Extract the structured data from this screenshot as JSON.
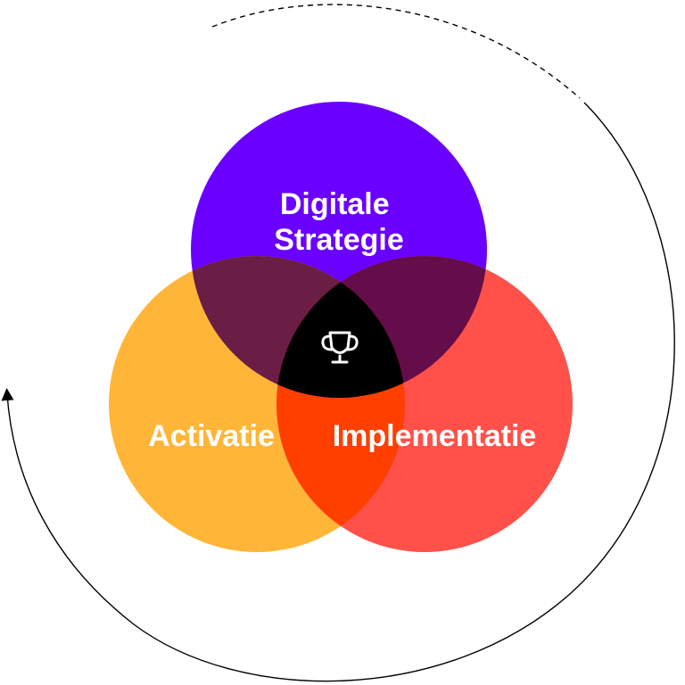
{
  "diagram": {
    "circles": [
      {
        "id": "strategy",
        "lines": [
          "Digitale",
          "Strategie"
        ],
        "color": "#6a00ff"
      },
      {
        "id": "activation",
        "lines": [
          "Activatie"
        ],
        "color": "#ffb638"
      },
      {
        "id": "implementation",
        "lines": [
          "Implementatie"
        ],
        "color": "#ff514a"
      }
    ],
    "overlaps": {
      "strategy_activation": "#6a1d45",
      "strategy_implementation": "#640d4a",
      "activation_implementation": "#ff3f00",
      "center": "#000000"
    },
    "center_icon": "trophy-icon",
    "cycle_arrow_icon": "cycle-arrow"
  }
}
